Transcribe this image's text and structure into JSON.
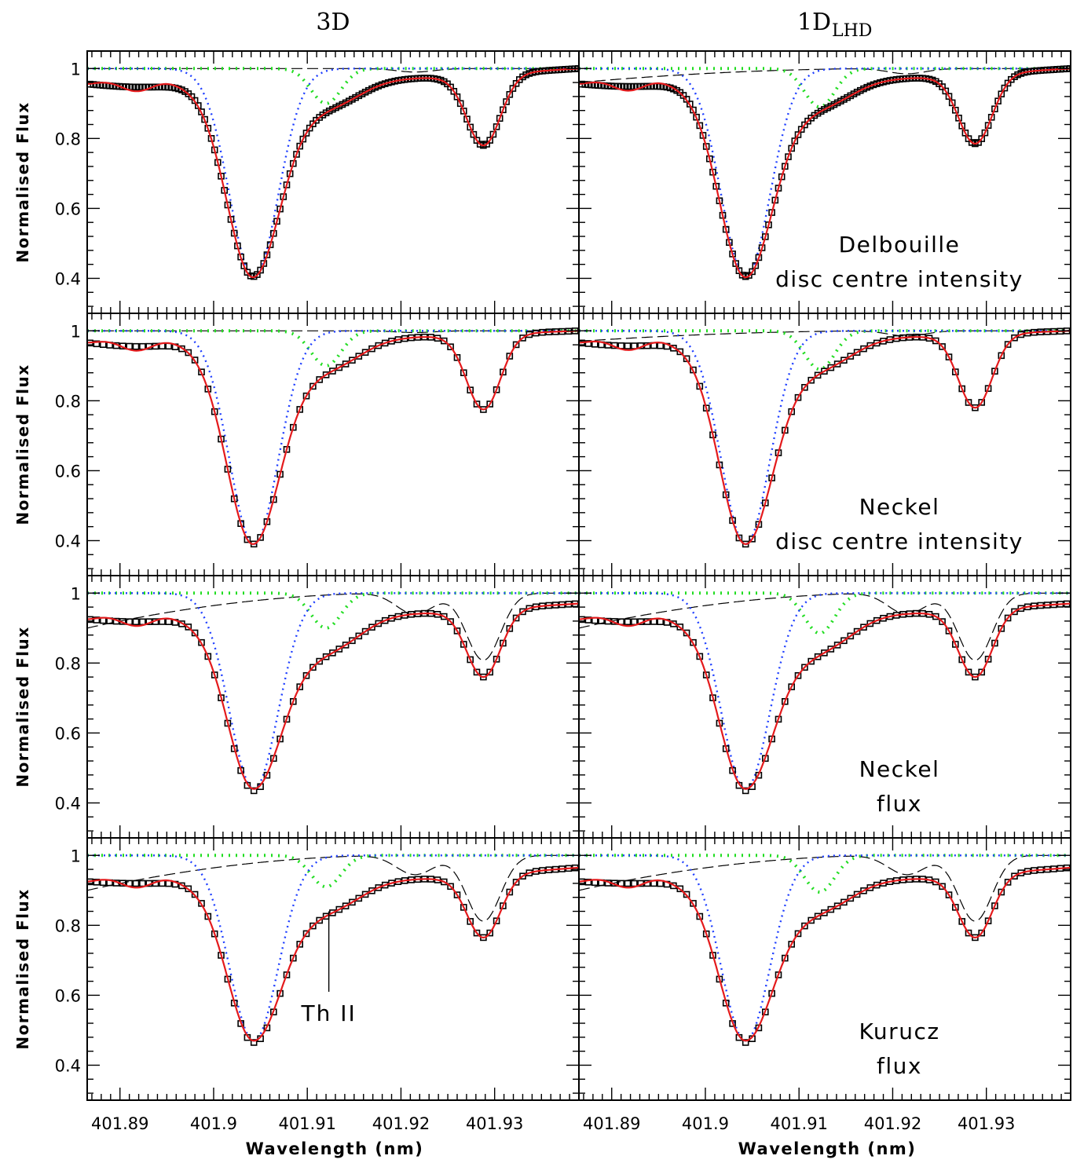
{
  "columns": [
    {
      "label": "3D",
      "subscript": ""
    },
    {
      "label": "1D",
      "subscript": "LHD"
    }
  ],
  "axes": {
    "ylabel": "Normalised Flux",
    "xlabel": "Wavelength (nm)",
    "xticks": [
      "401.89",
      "401.9",
      "401.91",
      "401.92",
      "401.93"
    ],
    "yticks": [
      "0.4",
      "0.6",
      "0.8",
      "1"
    ]
  },
  "panel_labels": [
    {
      "line1": "Delbouille",
      "line2": "disc centre intensity"
    },
    {
      "line1": "Neckel",
      "line2": "disc centre intensity"
    },
    {
      "line1": "Neckel",
      "line2": "flux"
    },
    {
      "line1": "Kurucz",
      "line2": "flux"
    }
  ],
  "annotation": {
    "text": "Th II",
    "x": 401.9123,
    "y_top": 0.84,
    "y_bottom": 0.61
  },
  "colors": {
    "observed": "#000000",
    "synthetic_total": "#e41a1c",
    "blend_blue": "#1f3fff",
    "blend_green": "#22dd22",
    "blend_black_dash": "#000000"
  },
  "chart_data": {
    "type": "line",
    "layout": "4 rows x 2 columns, shared axes",
    "xlim": [
      401.8865,
      401.939
    ],
    "ylim": [
      0.3,
      1.05
    ],
    "grid": false,
    "legend": "none",
    "series_descriptions": [
      {
        "key": "observed",
        "style": "open squares"
      },
      {
        "key": "total",
        "style": "solid red"
      },
      {
        "key": "blue",
        "style": "dotted blue"
      },
      {
        "key": "green",
        "style": "dotted green"
      },
      {
        "key": "dash",
        "style": "long-dashed black"
      }
    ],
    "panels": [
      {
        "row": 0,
        "col": 0,
        "line_center": 401.9042,
        "observed_min": 0.405,
        "far_left": 0.956,
        "bump_min": 0.93,
        "bump_x": 401.894,
        "shoulder": 0.87,
        "plateau": 0.975,
        "second_center": 401.9288,
        "second_min": 0.78,
        "right_end": 1.0,
        "total_min": 0.403,
        "blue_center": 401.9043,
        "green_center": 401.912,
        "green_min": 0.9,
        "dash_left": 1.0,
        "dash_right_min": 0.99
      },
      {
        "row": 0,
        "col": 1,
        "line_center": 401.9043,
        "observed_min": 0.405,
        "far_left": 0.956,
        "bump_min": 0.935,
        "bump_x": 401.8935,
        "shoulder": 0.87,
        "plateau": 0.975,
        "second_center": 401.9288,
        "second_min": 0.785,
        "right_end": 1.0,
        "total_min": 0.403,
        "blue_center": 401.9043,
        "green_center": 401.9122,
        "green_min": 0.89,
        "dash_left": 0.96,
        "dash_right_min": 0.985
      },
      {
        "row": 1,
        "col": 0,
        "line_center": 401.9042,
        "observed_min": 0.39,
        "far_left": 0.966,
        "bump_min": 0.935,
        "bump_x": 401.8935,
        "shoulder": 0.87,
        "plateau": 0.985,
        "second_center": 401.9288,
        "second_min": 0.775,
        "right_end": 1.0,
        "total_min": 0.39,
        "blue_center": 401.9043,
        "green_center": 401.912,
        "green_min": 0.9,
        "dash_left": 1.0,
        "dash_right_min": 0.995
      },
      {
        "row": 1,
        "col": 1,
        "line_center": 401.9043,
        "observed_min": 0.39,
        "far_left": 0.966,
        "bump_min": 0.94,
        "bump_x": 401.8935,
        "shoulder": 0.87,
        "plateau": 0.985,
        "second_center": 401.9288,
        "second_min": 0.78,
        "right_end": 1.0,
        "total_min": 0.39,
        "blue_center": 401.9043,
        "green_center": 401.9122,
        "green_min": 0.89,
        "dash_left": 0.97,
        "dash_right_min": 0.985
      },
      {
        "row": 2,
        "col": 0,
        "line_center": 401.9043,
        "observed_min": 0.435,
        "far_left": 0.925,
        "bump_min": 0.905,
        "bump_x": 401.8935,
        "shoulder": 0.81,
        "plateau": 0.945,
        "second_center": 401.9288,
        "second_min": 0.76,
        "right_end": 0.97,
        "total_min": 0.44,
        "blue_center": 401.9043,
        "green_center": 401.912,
        "green_min": 0.9,
        "dash_left": 0.9,
        "dash_right_min": 0.94
      },
      {
        "row": 2,
        "col": 1,
        "line_center": 401.9043,
        "observed_min": 0.435,
        "far_left": 0.925,
        "bump_min": 0.905,
        "bump_x": 401.8935,
        "shoulder": 0.81,
        "plateau": 0.945,
        "second_center": 401.9288,
        "second_min": 0.76,
        "right_end": 0.97,
        "total_min": 0.44,
        "blue_center": 401.9043,
        "green_center": 401.9122,
        "green_min": 0.885,
        "dash_left": 0.9,
        "dash_right_min": 0.94
      },
      {
        "row": 3,
        "col": 0,
        "line_center": 401.9043,
        "observed_min": 0.465,
        "far_left": 0.925,
        "bump_min": 0.91,
        "bump_x": 401.8935,
        "shoulder": 0.82,
        "plateau": 0.935,
        "second_center": 401.9288,
        "second_min": 0.765,
        "right_end": 0.965,
        "total_min": 0.47,
        "blue_center": 401.9043,
        "green_center": 401.912,
        "green_min": 0.91,
        "dash_left": 0.9,
        "dash_right_min": 0.945
      },
      {
        "row": 3,
        "col": 1,
        "line_center": 401.9043,
        "observed_min": 0.465,
        "far_left": 0.925,
        "bump_min": 0.91,
        "bump_x": 401.8935,
        "shoulder": 0.82,
        "plateau": 0.935,
        "second_center": 401.9288,
        "second_min": 0.765,
        "right_end": 0.965,
        "total_min": 0.47,
        "blue_center": 401.9043,
        "green_center": 401.9122,
        "green_min": 0.895,
        "dash_left": 0.9,
        "dash_right_min": 0.945
      }
    ]
  }
}
